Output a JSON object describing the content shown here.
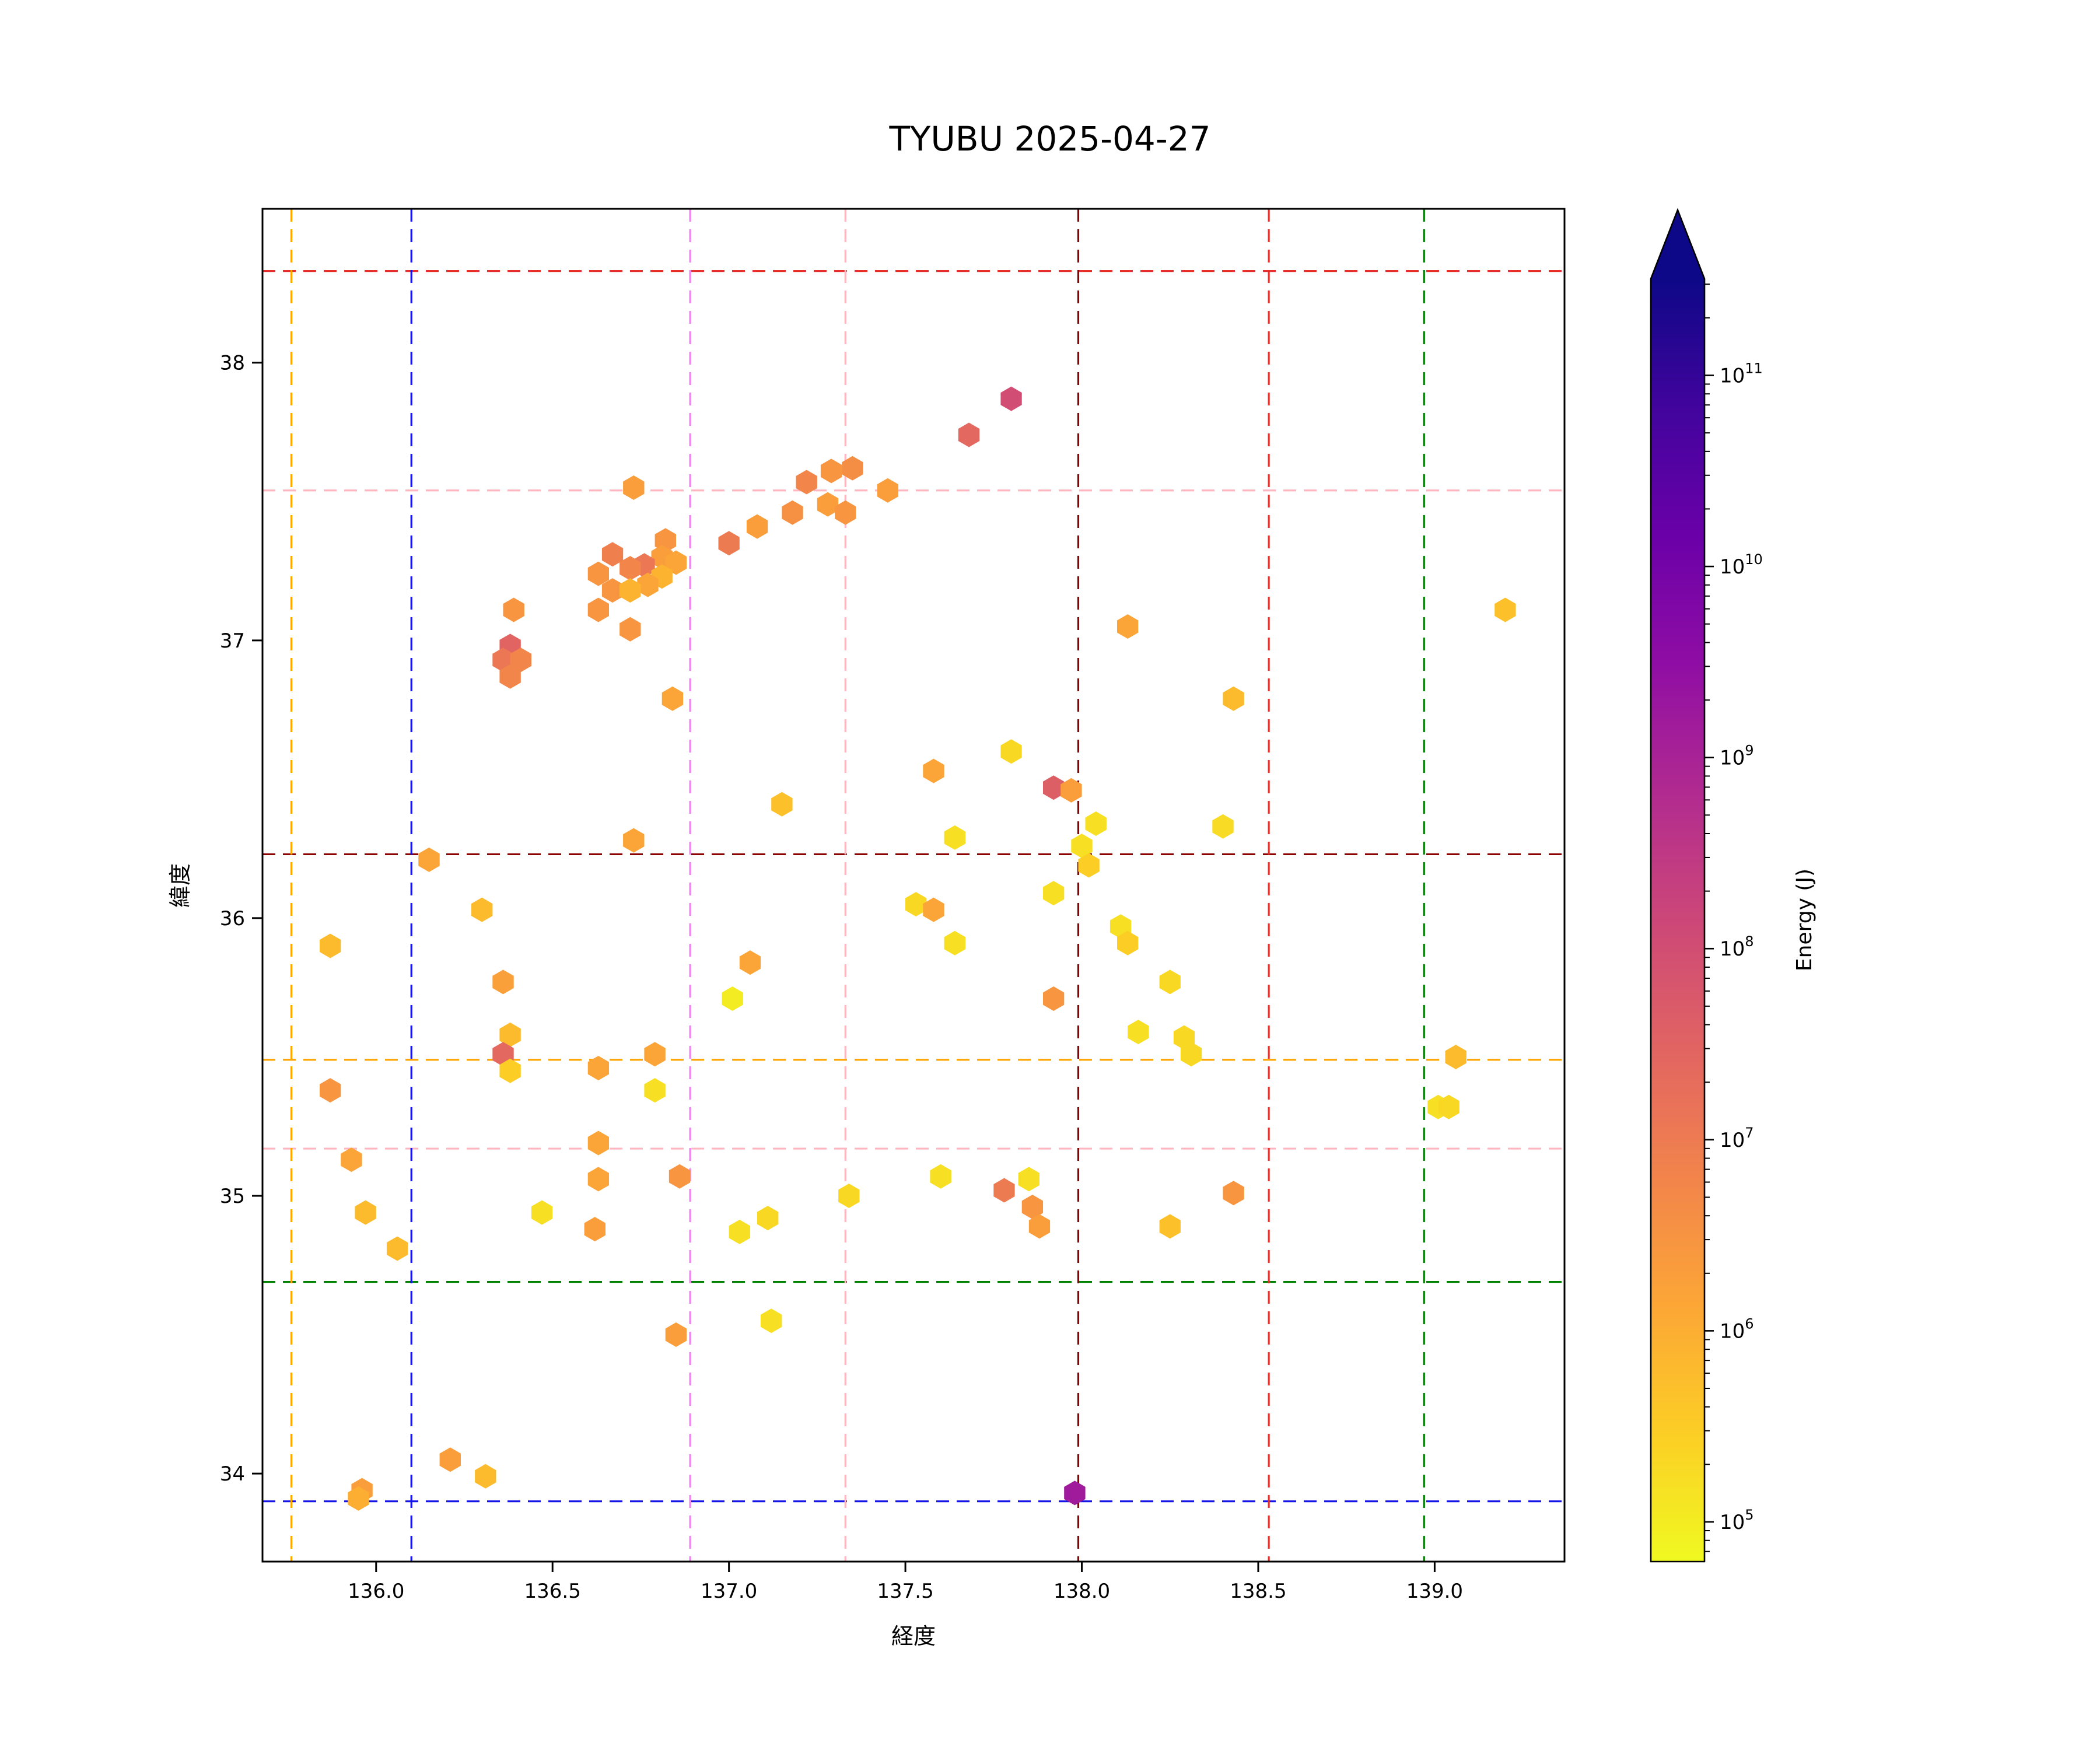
{
  "title": "TYUBU 2025-04-27",
  "axes": {
    "xlabel": "経度",
    "ylabel": "緯度",
    "xlim": [
      135.678,
      139.368
    ],
    "ylim": [
      33.683,
      38.554
    ],
    "xticks": [
      136.0,
      136.5,
      137.0,
      137.5,
      138.0,
      138.5,
      139.0
    ],
    "xtick_labels": [
      "136.0",
      "136.5",
      "137.0",
      "137.5",
      "138.0",
      "138.5",
      "139.0"
    ],
    "yticks": [
      34,
      35,
      36,
      37,
      38
    ],
    "ytick_labels": [
      "34",
      "35",
      "36",
      "37",
      "38"
    ]
  },
  "colorbar": {
    "label": "Energy (J)",
    "tick_exponents": [
      5,
      6,
      7,
      8,
      9,
      10,
      11
    ],
    "extend": "max",
    "colormap": "plasma_r"
  },
  "chart_data": {
    "type": "scatter",
    "marker": "hexagon",
    "title": "TYUBU 2025-04-27",
    "xlabel": "経度",
    "ylabel": "緯度",
    "xlim": [
      135.678,
      139.368
    ],
    "ylim": [
      33.683,
      38.554
    ],
    "colorbar_label": "Energy (J)",
    "color_scale": {
      "type": "log",
      "vmin": 62000.0,
      "vmax": 320000000000.0,
      "colormap": "plasma_r",
      "extend": "max"
    },
    "colorbar_ticks": [
      100000.0,
      1000000.0,
      10000000.0,
      100000000.0,
      1000000000.0,
      10000000000.0,
      100000000000.0
    ],
    "points": [
      [
        137.8,
        37.87,
        100000000.0
      ],
      [
        137.68,
        37.74,
        25000000.0
      ],
      [
        137.35,
        37.62,
        4000000.0
      ],
      [
        137.29,
        37.61,
        3000000.0
      ],
      [
        137.45,
        37.54,
        2000000.0
      ],
      [
        137.22,
        37.57,
        6000000.0
      ],
      [
        137.28,
        37.49,
        2000000.0
      ],
      [
        137.33,
        37.46,
        3000000.0
      ],
      [
        137.18,
        37.46,
        3500000.0
      ],
      [
        137.08,
        37.41,
        2000000.0
      ],
      [
        136.73,
        37.55,
        2000000.0
      ],
      [
        137.0,
        37.35,
        10000000.0
      ],
      [
        136.82,
        37.36,
        3000000.0
      ],
      [
        136.81,
        37.3,
        2000000.0
      ],
      [
        136.85,
        37.28,
        1500000.0
      ],
      [
        136.76,
        37.27,
        12000000.0
      ],
      [
        136.67,
        37.31,
        8000000.0
      ],
      [
        136.72,
        37.26,
        6000000.0
      ],
      [
        136.81,
        37.23,
        800000.0
      ],
      [
        136.77,
        37.2,
        1500000.0
      ],
      [
        136.63,
        37.24,
        3000000.0
      ],
      [
        136.67,
        37.18,
        3000000.0
      ],
      [
        136.72,
        37.18,
        800000.0
      ],
      [
        136.63,
        37.11,
        3000000.0
      ],
      [
        136.72,
        37.04,
        3000000.0
      ],
      [
        136.39,
        37.11,
        3000000.0
      ],
      [
        136.38,
        36.98,
        30000000.0
      ],
      [
        136.36,
        36.93,
        12000000.0
      ],
      [
        136.41,
        36.93,
        6000000.0
      ],
      [
        136.38,
        36.87,
        6000000.0
      ],
      [
        136.84,
        36.79,
        1500000.0
      ],
      [
        137.8,
        36.6,
        200000.0
      ],
      [
        137.58,
        36.53,
        1500000.0
      ],
      [
        137.92,
        36.47,
        40000000.0
      ],
      [
        137.97,
        36.46,
        2000000.0
      ],
      [
        138.13,
        37.05,
        1500000.0
      ],
      [
        138.43,
        36.79,
        600000.0
      ],
      [
        139.2,
        37.11,
        500000.0
      ],
      [
        138.04,
        36.34,
        150000.0
      ],
      [
        138.4,
        36.33,
        180000.0
      ],
      [
        137.15,
        36.41,
        500000.0
      ],
      [
        136.73,
        36.28,
        1500000.0
      ],
      [
        137.64,
        36.29,
        150000.0
      ],
      [
        138.0,
        36.26,
        150000.0
      ],
      [
        138.02,
        36.19,
        300000.0
      ],
      [
        136.15,
        36.21,
        1500000.0
      ],
      [
        137.92,
        36.09,
        150000.0
      ],
      [
        137.53,
        36.05,
        200000.0
      ],
      [
        137.58,
        36.03,
        1500000.0
      ],
      [
        136.3,
        36.03,
        600000.0
      ],
      [
        138.11,
        35.97,
        150000.0
      ],
      [
        138.13,
        35.91,
        300000.0
      ],
      [
        135.87,
        35.9,
        600000.0
      ],
      [
        137.64,
        35.91,
        150000.0
      ],
      [
        137.06,
        35.84,
        1500000.0
      ],
      [
        136.36,
        35.77,
        1800000.0
      ],
      [
        138.25,
        35.77,
        200000.0
      ],
      [
        137.01,
        35.71,
        100000.0
      ],
      [
        137.92,
        35.71,
        3000000.0
      ],
      [
        138.16,
        35.59,
        150000.0
      ],
      [
        138.29,
        35.57,
        200000.0
      ],
      [
        138.31,
        35.51,
        200000.0
      ],
      [
        136.38,
        35.58,
        600000.0
      ],
      [
        136.36,
        35.51,
        25000000.0
      ],
      [
        136.38,
        35.45,
        300000.0
      ],
      [
        136.63,
        35.46,
        1500000.0
      ],
      [
        136.79,
        35.51,
        1500000.0
      ],
      [
        135.87,
        35.38,
        3000000.0
      ],
      [
        139.06,
        35.5,
        600000.0
      ],
      [
        139.01,
        35.32,
        150000.0
      ],
      [
        139.04,
        35.32,
        200000.0
      ],
      [
        136.79,
        35.38,
        150000.0
      ],
      [
        136.63,
        35.19,
        1500000.0
      ],
      [
        135.93,
        35.13,
        1500000.0
      ],
      [
        136.63,
        35.06,
        1500000.0
      ],
      [
        136.86,
        35.07,
        3000000.0
      ],
      [
        137.6,
        35.07,
        150000.0
      ],
      [
        137.78,
        35.02,
        10000000.0
      ],
      [
        137.85,
        35.06,
        150000.0
      ],
      [
        137.34,
        35.0,
        200000.0
      ],
      [
        138.43,
        35.01,
        3000000.0
      ],
      [
        135.97,
        34.94,
        600000.0
      ],
      [
        136.47,
        34.94,
        150000.0
      ],
      [
        137.86,
        34.96,
        3000000.0
      ],
      [
        137.88,
        34.89,
        2000000.0
      ],
      [
        137.11,
        34.92,
        200000.0
      ],
      [
        138.25,
        34.89,
        500000.0
      ],
      [
        137.03,
        34.87,
        150000.0
      ],
      [
        136.62,
        34.88,
        2000000.0
      ],
      [
        136.06,
        34.81,
        600000.0
      ],
      [
        137.12,
        34.55,
        150000.0
      ],
      [
        136.85,
        34.5,
        2000000.0
      ],
      [
        136.21,
        34.05,
        2000000.0
      ],
      [
        136.31,
        33.99,
        600000.0
      ],
      [
        135.96,
        33.94,
        2000000.0
      ],
      [
        135.95,
        33.91,
        1000000.0
      ],
      [
        137.98,
        33.93,
        1500000000.0
      ]
    ],
    "hlines": [
      {
        "y": 38.33,
        "color": "#e8302a"
      },
      {
        "y": 37.54,
        "color": "#ffb6c1"
      },
      {
        "y": 36.23,
        "color": "#8b0000"
      },
      {
        "y": 35.49,
        "color": "#ffa500"
      },
      {
        "y": 35.17,
        "color": "#ffb6c1"
      },
      {
        "y": 34.69,
        "color": "#008000"
      },
      {
        "y": 33.9,
        "color": "#1414e6"
      }
    ],
    "vlines": [
      {
        "x": 135.76,
        "color": "#ffa500"
      },
      {
        "x": 136.1,
        "color": "#1414e6"
      },
      {
        "x": 136.89,
        "color": "#ee82ee"
      },
      {
        "x": 137.33,
        "color": "#ffb6c1"
      },
      {
        "x": 137.99,
        "color": "#8b0000"
      },
      {
        "x": 138.53,
        "color": "#e8302a"
      },
      {
        "x": 138.97,
        "color": "#008000"
      }
    ],
    "legend": null,
    "grid": false
  }
}
